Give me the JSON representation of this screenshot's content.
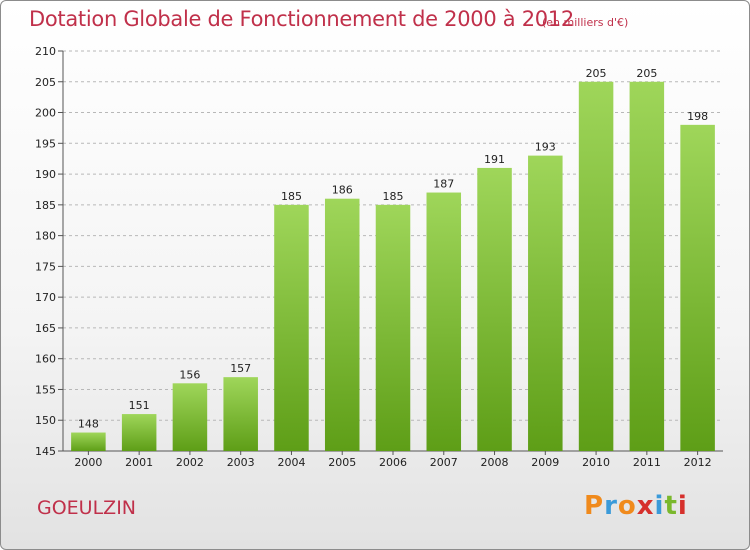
{
  "header": {
    "title": "Dotation Globale de Fonctionnement de 2000 à 2012",
    "unit_note": "(en milliers d'€)"
  },
  "footer": {
    "commune": "GOEULZIN",
    "logo_text": "Proxiti",
    "logo_colors": [
      "#f08a1c",
      "#3a9ad9",
      "#f08a1c",
      "#d6302c",
      "#3a9ad9",
      "#7ab82c",
      "#d6302c"
    ]
  },
  "colors": {
    "bar_top": "#9fd65a",
    "bar_bottom": "#5e9e17",
    "title": "#c0304a",
    "grid": "#b8b8b8"
  },
  "chart_data": {
    "type": "bar",
    "categories": [
      "2000",
      "2001",
      "2002",
      "2003",
      "2004",
      "2005",
      "2006",
      "2007",
      "2008",
      "2009",
      "2010",
      "2011",
      "2012"
    ],
    "values": [
      148,
      151,
      156,
      157,
      185,
      186,
      185,
      187,
      191,
      193,
      205,
      205,
      198
    ],
    "title": "Dotation Globale de Fonctionnement de 2000 à 2012",
    "subtitle": "(en milliers d'€)",
    "xlabel": "",
    "ylabel": "",
    "ylim": [
      145,
      210
    ],
    "yticks": [
      145,
      150,
      155,
      160,
      165,
      170,
      175,
      180,
      185,
      190,
      195,
      200,
      205,
      210
    ],
    "grid": "dashed horizontal",
    "data_labels": true
  }
}
